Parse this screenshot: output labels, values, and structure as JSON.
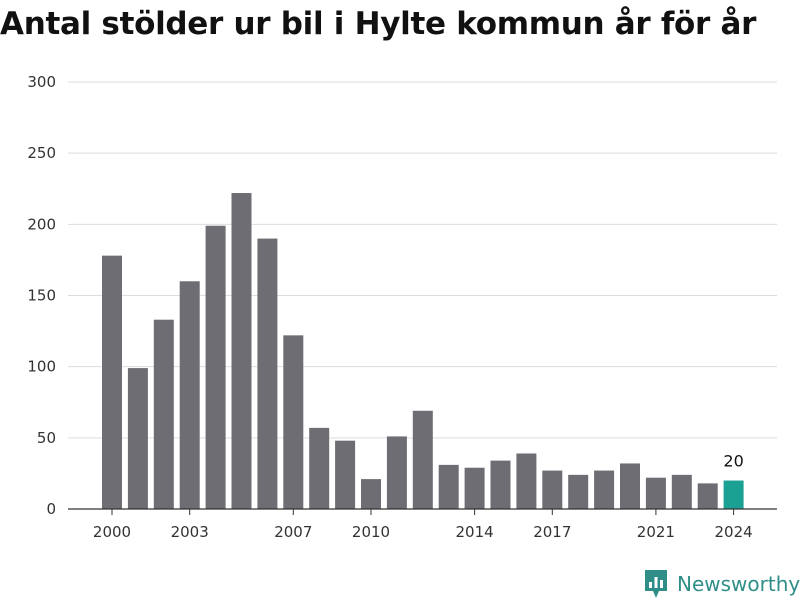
{
  "chart_data": {
    "type": "bar",
    "title": "Antal stölder ur bil i Hylte kommun år för år",
    "x": [
      2000,
      2001,
      2002,
      2003,
      2004,
      2005,
      2006,
      2007,
      2008,
      2009,
      2010,
      2011,
      2012,
      2013,
      2014,
      2015,
      2016,
      2017,
      2018,
      2019,
      2020,
      2021,
      2022,
      2023,
      2024
    ],
    "values": [
      178,
      99,
      133,
      160,
      199,
      222,
      190,
      122,
      57,
      48,
      21,
      51,
      69,
      31,
      29,
      34,
      39,
      27,
      24,
      27,
      32,
      22,
      24,
      18,
      20
    ],
    "x_tick_labels": [
      "2000",
      "2003",
      "2007",
      "2010",
      "2014",
      "2017",
      "2021",
      "2024"
    ],
    "y_ticks": [
      "0",
      "50",
      "100",
      "150",
      "200",
      "250",
      "300"
    ],
    "ylim": [
      0,
      300
    ],
    "grid": true,
    "highlight": {
      "year": 2024,
      "label": "20"
    },
    "colors": {
      "bar": "#6e6d73",
      "highlight": "#1aa193",
      "grid": "#dddddd"
    }
  },
  "brand": {
    "name": "Newsworthy",
    "icon": "newsworthy-logo-icon",
    "color": "#2f8f88"
  }
}
